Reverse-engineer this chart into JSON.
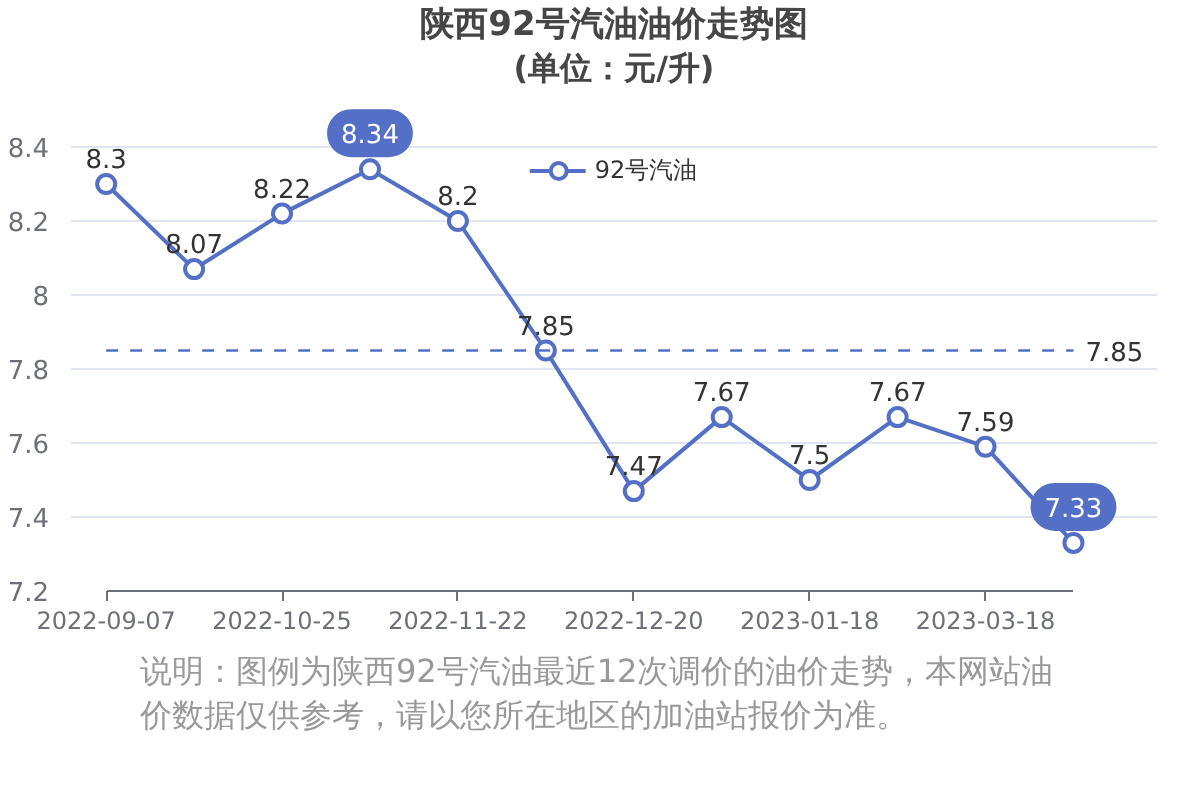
{
  "chart_data": {
    "type": "line",
    "title": "陕西92号汽油油价走势图",
    "subtitle": "(单位：元/升)",
    "categories": [
      "2022-09-07",
      null,
      "2022-10-25",
      null,
      "2022-11-22",
      null,
      "2022-12-20",
      null,
      "2023-01-18",
      null,
      "2023-03-18",
      null
    ],
    "series": [
      {
        "name": "92号汽油",
        "color": "#5470c6",
        "values": [
          8.3,
          8.07,
          8.22,
          8.34,
          8.2,
          7.85,
          7.47,
          7.67,
          7.5,
          7.67,
          7.59,
          7.33
        ],
        "value_labels": [
          "8.3",
          "8.07",
          "8.22",
          null,
          "8.2",
          "7.85",
          "7.47",
          "7.67",
          "7.5",
          "7.67",
          "7.59",
          null
        ]
      }
    ],
    "ylim": [
      7.2,
      8.4
    ],
    "yticks": [
      7.2,
      7.4,
      7.6,
      7.8,
      8,
      8.2,
      8.4
    ],
    "grid": "y",
    "legend": "top",
    "marker": "circle",
    "line_style": "solid",
    "ref_lines": [
      {
        "axis": "y",
        "value": 7.85,
        "label": "7.85",
        "color": "#5470c6",
        "line_style": "dashed"
      }
    ],
    "annotations": [
      {
        "text": "8.34",
        "y": 8.34
      },
      {
        "text": "7.33",
        "y": 7.33
      },
      "说明：图例为陕西92号汽油最近12次调价的油价走势，本网站油价数据仅供参考，请以您所在地区的加油站报价为准。"
    ]
  }
}
